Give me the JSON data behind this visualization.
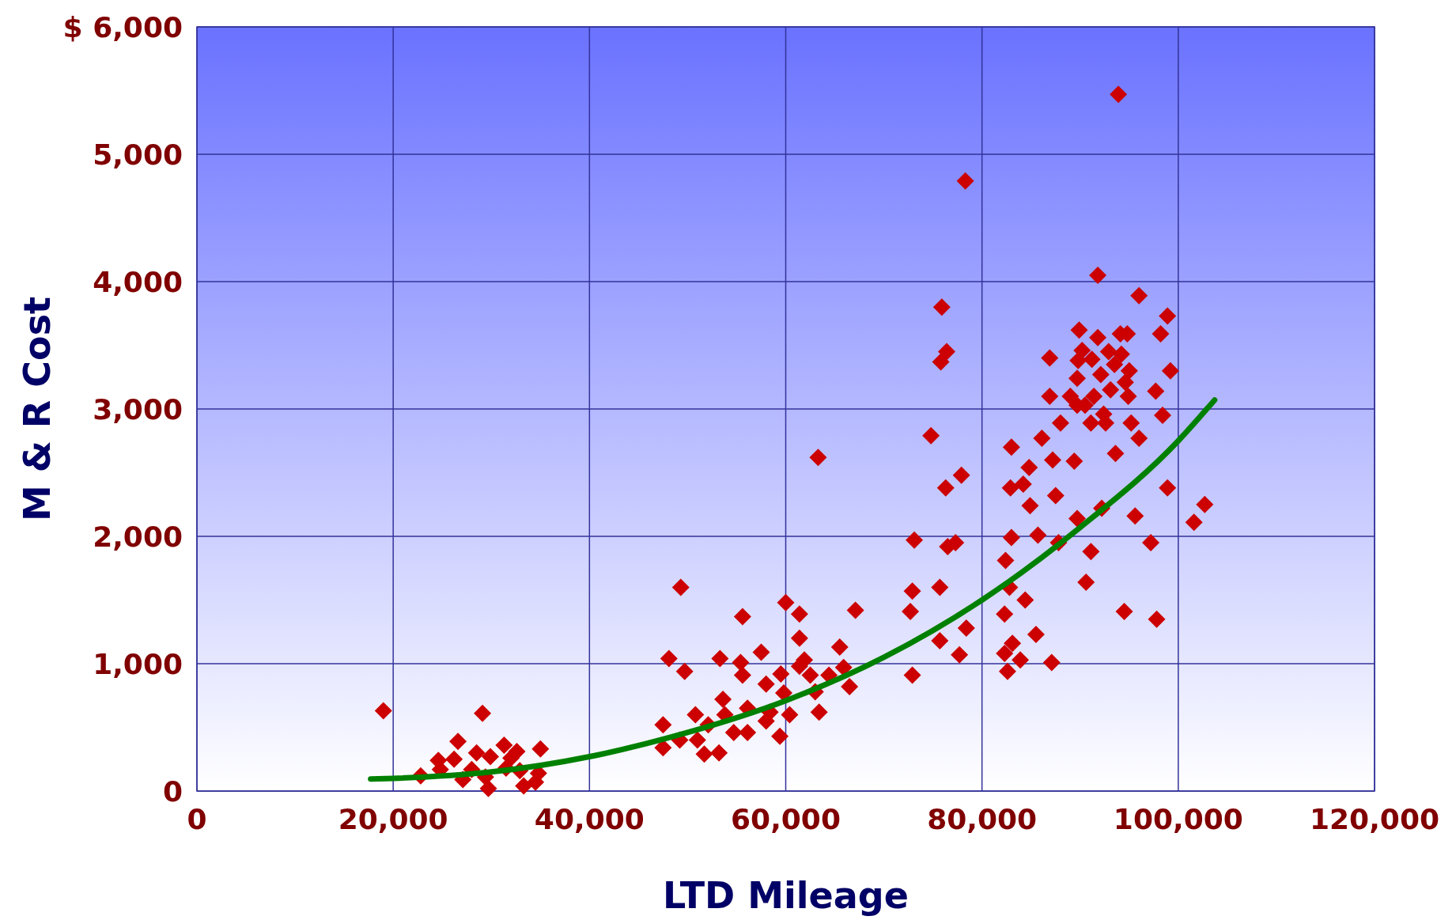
{
  "chart_data": {
    "type": "scatter",
    "xlabel": "LTD Mileage",
    "ylabel": "M & R Cost",
    "xlim": [
      0,
      120000
    ],
    "xticks": [
      0,
      {
        "value": 20000,
        "label": "20,000"
      },
      {
        "value": 40000,
        "label": "40,000"
      },
      {
        "value": 60000,
        "label": "60,000"
      },
      {
        "value": 80000,
        "label": "80,000"
      },
      {
        "value": 100000,
        "label": "100,000"
      },
      {
        "value": 120000,
        "label": "120,000"
      }
    ],
    "ylim": [
      0,
      6000
    ],
    "yticks": [
      0,
      {
        "value": 1000,
        "label": "1,000"
      },
      {
        "value": 2000,
        "label": "2,000"
      },
      {
        "value": 3000,
        "label": "3,000"
      },
      {
        "value": 4000,
        "label": "4,000"
      },
      {
        "value": 5000,
        "label": "5,000"
      },
      {
        "value": 6000,
        "label": "$ 6,000"
      }
    ],
    "grid": true,
    "series": [
      {
        "type": "scatter",
        "marker": "diamond",
        "color": "#cc0000",
        "x": [
          19000,
          22800,
          24600,
          24800,
          26200,
          26600,
          27100,
          28000,
          28500,
          29100,
          29400,
          29700,
          29900,
          31300,
          31500,
          32000,
          32600,
          32900,
          33300,
          34500,
          34800,
          35000,
          47500,
          47500,
          48100,
          49300,
          49700,
          49200,
          50800,
          51000,
          51700,
          52100,
          53200,
          53300,
          53600,
          53800,
          54700,
          55400,
          55600,
          55600,
          56100,
          56100,
          57500,
          58000,
          58000,
          58400,
          59400,
          59500,
          59800,
          60000,
          60400,
          61400,
          61400,
          61400,
          61900,
          62500,
          63000,
          63300,
          63400,
          64400,
          65500,
          65900,
          66500,
          67100,
          72900,
          72700,
          72900,
          73100,
          74800,
          75700,
          75700,
          75800,
          75900,
          76300,
          76400,
          76500,
          77300,
          77700,
          77900,
          78300,
          78400,
          82300,
          82300,
          82400,
          82600,
          82800,
          82900,
          83000,
          83000,
          83100,
          83900,
          84200,
          84400,
          84800,
          84900,
          85500,
          85700,
          86100,
          86900,
          86900,
          87100,
          87200,
          87500,
          87800,
          88000,
          89000,
          89400,
          89700,
          89700,
          89700,
          89800,
          89900,
          90200,
          90500,
          90600,
          91100,
          91100,
          91200,
          91400,
          91800,
          91800,
          92100,
          92200,
          92400,
          92600,
          92900,
          93100,
          93500,
          93600,
          93900,
          94100,
          94200,
          94500,
          94600,
          94800,
          94900,
          95000,
          95200,
          95600,
          96000,
          96000,
          97200,
          97700,
          97800,
          98200,
          98400,
          98900,
          98900,
          99200,
          101600,
          102700
        ],
        "values": [
          630,
          120,
          240,
          170,
          250,
          390,
          90,
          170,
          300,
          610,
          110,
          20,
          270,
          360,
          180,
          260,
          310,
          160,
          40,
          70,
          140,
          330,
          520,
          340,
          1040,
          1600,
          940,
          400,
          600,
          400,
          290,
          520,
          300,
          1040,
          720,
          600,
          460,
          1010,
          910,
          1370,
          460,
          650,
          1090,
          840,
          550,
          620,
          430,
          920,
          770,
          1480,
          600,
          980,
          1200,
          1390,
          1030,
          910,
          780,
          2620,
          620,
          910,
          1130,
          970,
          820,
          1420,
          910,
          1410,
          1570,
          1970,
          2790,
          1600,
          1180,
          3370,
          3800,
          2380,
          3450,
          1920,
          1950,
          1070,
          2480,
          4790,
          1280,
          1080,
          1390,
          1810,
          940,
          1600,
          2380,
          1990,
          2700,
          1160,
          1030,
          2410,
          1500,
          2540,
          2240,
          1230,
          2010,
          2770,
          3100,
          3400,
          1010,
          2600,
          2320,
          1950,
          2890,
          3100,
          2590,
          2140,
          3030,
          3240,
          3380,
          3620,
          3460,
          3030,
          1640,
          1880,
          2890,
          3390,
          3100,
          4050,
          3560,
          3270,
          2220,
          2960,
          2890,
          3450,
          3150,
          3350,
          2650,
          5470,
          3590,
          3430,
          1410,
          3210,
          3590,
          3100,
          3300,
          2890,
          2160,
          3890,
          2770,
          1950,
          3140,
          1350,
          3590,
          2950,
          3730,
          2380,
          3300,
          2110,
          2250
        ]
      },
      {
        "type": "line",
        "marker": "none",
        "line_style": "solid",
        "color": "#008000",
        "x": [
          17700,
          20000,
          30000,
          40000,
          50000,
          60000,
          70000,
          80000,
          90000,
          100000,
          103700
        ],
        "values": [
          95,
          100,
          150,
          270,
          460,
          710,
          1050,
          1500,
          2070,
          2750,
          3070
        ]
      }
    ]
  }
}
